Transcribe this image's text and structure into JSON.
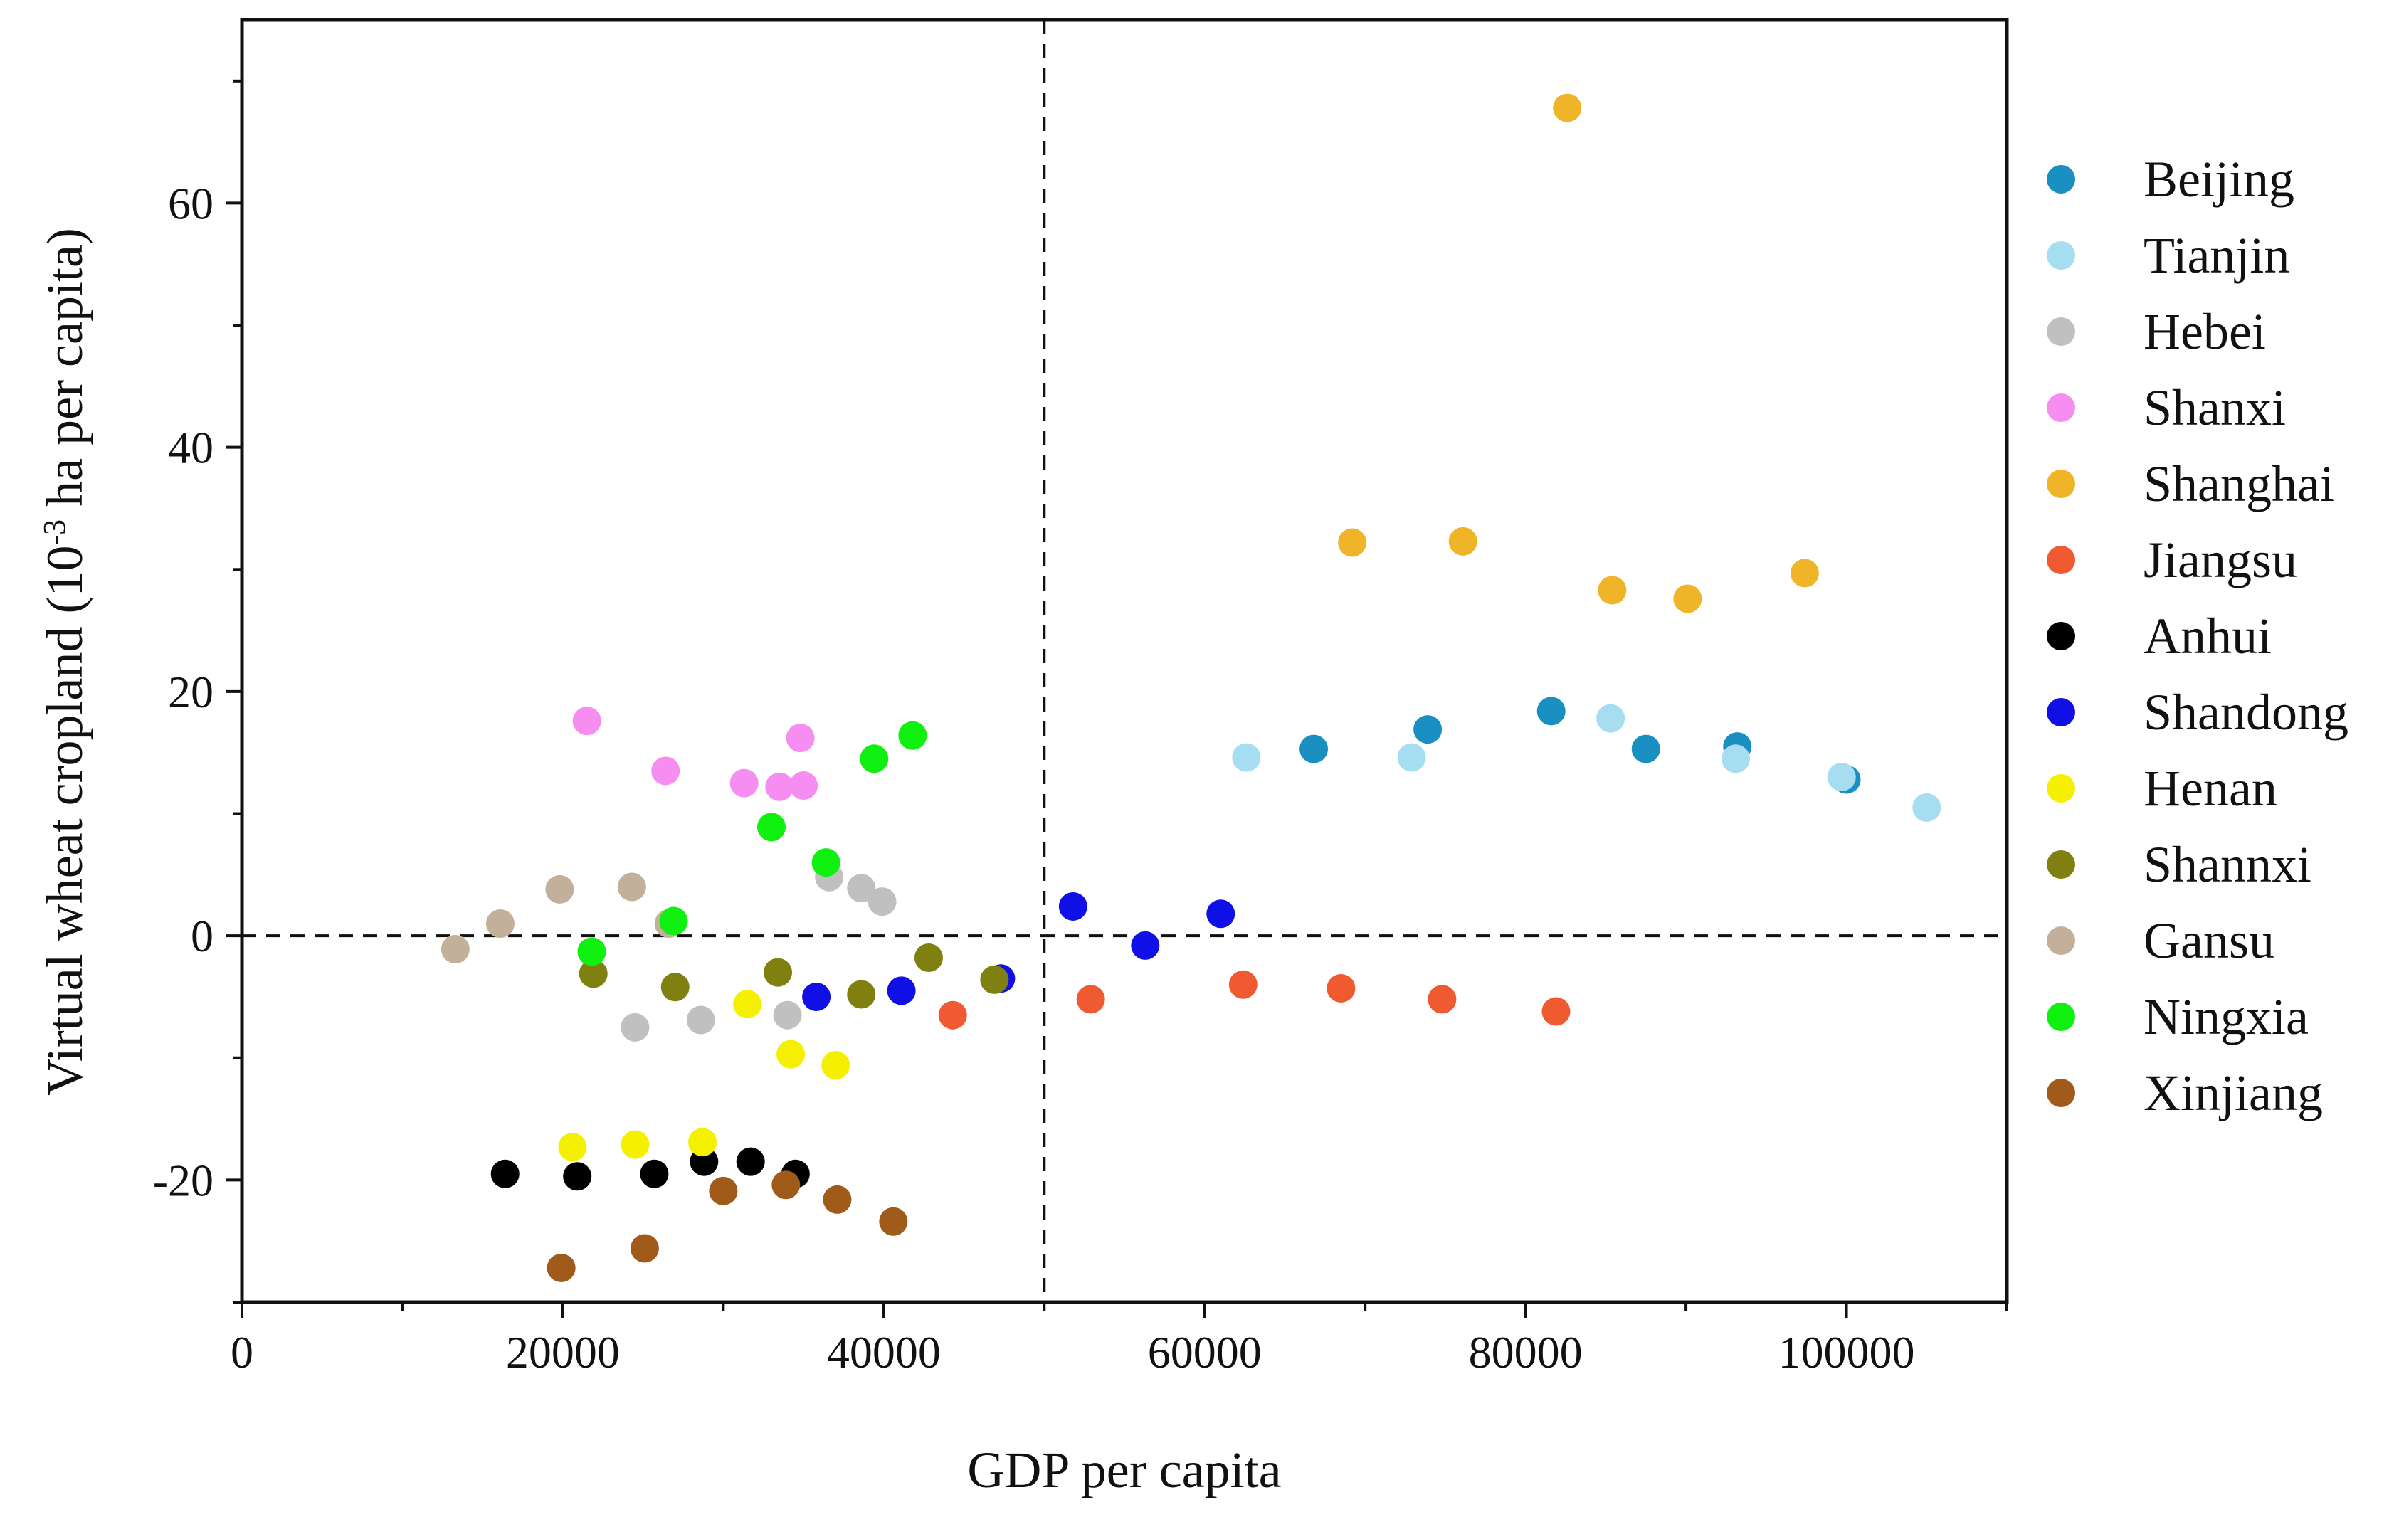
{
  "chart_data": {
    "type": "scatter",
    "title": "",
    "xlabel": "GDP per capita",
    "ylabel": {
      "prefix": "Virtual wheat cropland (10",
      "superscript": "-3",
      "suffix": " ha per capita)"
    },
    "xlim": [
      0,
      110000
    ],
    "ylim": [
      -30,
      75
    ],
    "x_ticks": [
      0,
      20000,
      40000,
      60000,
      80000,
      100000
    ],
    "x_tick_labels": [
      "0",
      "20000",
      "40000",
      "60000",
      "80000",
      "100000"
    ],
    "y_ticks": [
      -20,
      0,
      20,
      40,
      60
    ],
    "y_tick_labels": [
      "-20",
      "0",
      "20",
      "40",
      "60"
    ],
    "reference_lines": {
      "x": 50000,
      "y": 0,
      "style": "dashed"
    },
    "grid": false,
    "legend_position": "right",
    "series": [
      {
        "name": "Beijing",
        "color": "#1a8fc2",
        "points": [
          [
            66800,
            15.3
          ],
          [
            73900,
            16.9
          ],
          [
            81600,
            18.4
          ],
          [
            87500,
            15.3
          ],
          [
            93200,
            15.5
          ],
          [
            100000,
            12.8
          ]
        ]
      },
      {
        "name": "Tianjin",
        "color": "#a6ddf0",
        "points": [
          [
            62600,
            14.6
          ],
          [
            72900,
            14.6
          ],
          [
            85300,
            17.8
          ],
          [
            93100,
            14.5
          ],
          [
            99700,
            13.0
          ],
          [
            105000,
            10.5
          ]
        ]
      },
      {
        "name": "Hebei",
        "color": "#c0c0c0",
        "points": [
          [
            24500,
            -7.5
          ],
          [
            28600,
            -6.9
          ],
          [
            34000,
            -6.5
          ],
          [
            36600,
            4.8
          ],
          [
            38600,
            3.9
          ],
          [
            39900,
            2.8
          ]
        ]
      },
      {
        "name": "Shanxi",
        "color": "#f58ef0",
        "points": [
          [
            21500,
            17.6
          ],
          [
            26400,
            13.5
          ],
          [
            31300,
            12.5
          ],
          [
            33500,
            12.2
          ],
          [
            34800,
            16.2
          ],
          [
            35000,
            12.3
          ]
        ]
      },
      {
        "name": "Shanghai",
        "color": "#f0b429",
        "points": [
          [
            69200,
            32.2
          ],
          [
            76100,
            32.3
          ],
          [
            82600,
            67.8
          ],
          [
            85400,
            28.3
          ],
          [
            90100,
            27.6
          ],
          [
            97400,
            29.7
          ]
        ]
      },
      {
        "name": "Jiangsu",
        "color": "#f05a30",
        "points": [
          [
            44300,
            -6.5
          ],
          [
            52900,
            -5.2
          ],
          [
            62400,
            -4.0
          ],
          [
            68500,
            -4.3
          ],
          [
            74800,
            -5.2
          ],
          [
            81900,
            -6.2
          ]
        ]
      },
      {
        "name": "Anhui",
        "color": "#000000",
        "points": [
          [
            16400,
            -19.5
          ],
          [
            20900,
            -19.7
          ],
          [
            25700,
            -19.5
          ],
          [
            28800,
            -18.5
          ],
          [
            31700,
            -18.5
          ],
          [
            34500,
            -19.5
          ]
        ]
      },
      {
        "name": "Shandong",
        "color": "#1010e6",
        "points": [
          [
            35800,
            -5.0
          ],
          [
            41100,
            -4.5
          ],
          [
            47300,
            -3.5
          ],
          [
            51800,
            2.4
          ],
          [
            56300,
            -0.8
          ],
          [
            61000,
            1.8
          ]
        ]
      },
      {
        "name": "Henan",
        "color": "#f5f000",
        "points": [
          [
            20600,
            -17.3
          ],
          [
            24500,
            -17.1
          ],
          [
            28700,
            -16.9
          ],
          [
            31500,
            -5.6
          ],
          [
            34200,
            -9.7
          ],
          [
            37000,
            -10.6
          ]
        ]
      },
      {
        "name": "Shannxi",
        "color": "#808010",
        "points": [
          [
            21900,
            -3.1
          ],
          [
            27000,
            -4.2
          ],
          [
            33400,
            -3.0
          ],
          [
            38600,
            -4.8
          ],
          [
            42800,
            -1.8
          ],
          [
            46900,
            -3.6
          ]
        ]
      },
      {
        "name": "Gansu",
        "color": "#c2b09a",
        "points": [
          [
            13300,
            -1.1
          ],
          [
            16100,
            1.0
          ],
          [
            19800,
            3.8
          ],
          [
            24300,
            4.0
          ],
          [
            26600,
            1.0
          ]
        ]
      },
      {
        "name": "Ningxia",
        "color": "#10f010",
        "points": [
          [
            21800,
            -1.3
          ],
          [
            26900,
            1.2
          ],
          [
            33000,
            8.9
          ],
          [
            36400,
            6.0
          ],
          [
            39400,
            14.5
          ],
          [
            41800,
            16.4
          ]
        ]
      },
      {
        "name": "Xinjiang",
        "color": "#a05a1a",
        "points": [
          [
            19900,
            -27.2
          ],
          [
            25100,
            -25.6
          ],
          [
            30000,
            -20.9
          ],
          [
            33900,
            -20.4
          ],
          [
            37100,
            -21.6
          ],
          [
            40600,
            -23.4
          ]
        ]
      }
    ]
  }
}
